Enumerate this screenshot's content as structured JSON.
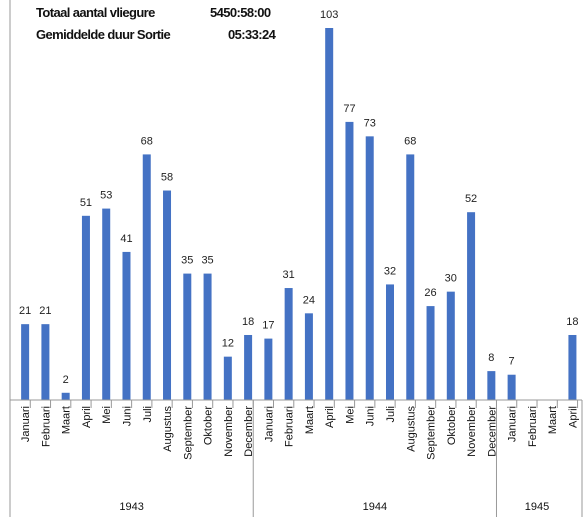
{
  "header": {
    "total_label": "Totaal aantal vliegure",
    "total_value": "5450:58:00",
    "avg_label": "Gemiddelde duur Sortie",
    "avg_value": "05:33:24"
  },
  "chart_data": {
    "type": "bar",
    "title": "",
    "xlabel": "",
    "ylabel": "",
    "ylim": [
      0,
      103
    ],
    "grid": false,
    "legend": "none",
    "bar_color": "#4472c4",
    "categories": [
      "Januari",
      "Februari",
      "Maart",
      "April",
      "Mei",
      "Juni",
      "Juli",
      "Augustus",
      "September",
      "Oktober",
      "November",
      "December",
      "Januari",
      "Februari",
      "Maart",
      "April",
      "Mei",
      "Juni",
      "Juli",
      "Augustus",
      "September",
      "Oktober",
      "November",
      "December",
      "Januari",
      "Februari",
      "Maart",
      "April"
    ],
    "values": [
      21,
      21,
      2,
      51,
      53,
      41,
      68,
      58,
      35,
      35,
      12,
      18,
      17,
      31,
      24,
      103,
      77,
      73,
      32,
      68,
      26,
      30,
      52,
      8,
      7,
      null,
      null,
      18
    ],
    "groups": [
      {
        "label": "1943",
        "count": 12
      },
      {
        "label": "1944",
        "count": 12
      },
      {
        "label": "1945",
        "count": 4
      }
    ]
  }
}
